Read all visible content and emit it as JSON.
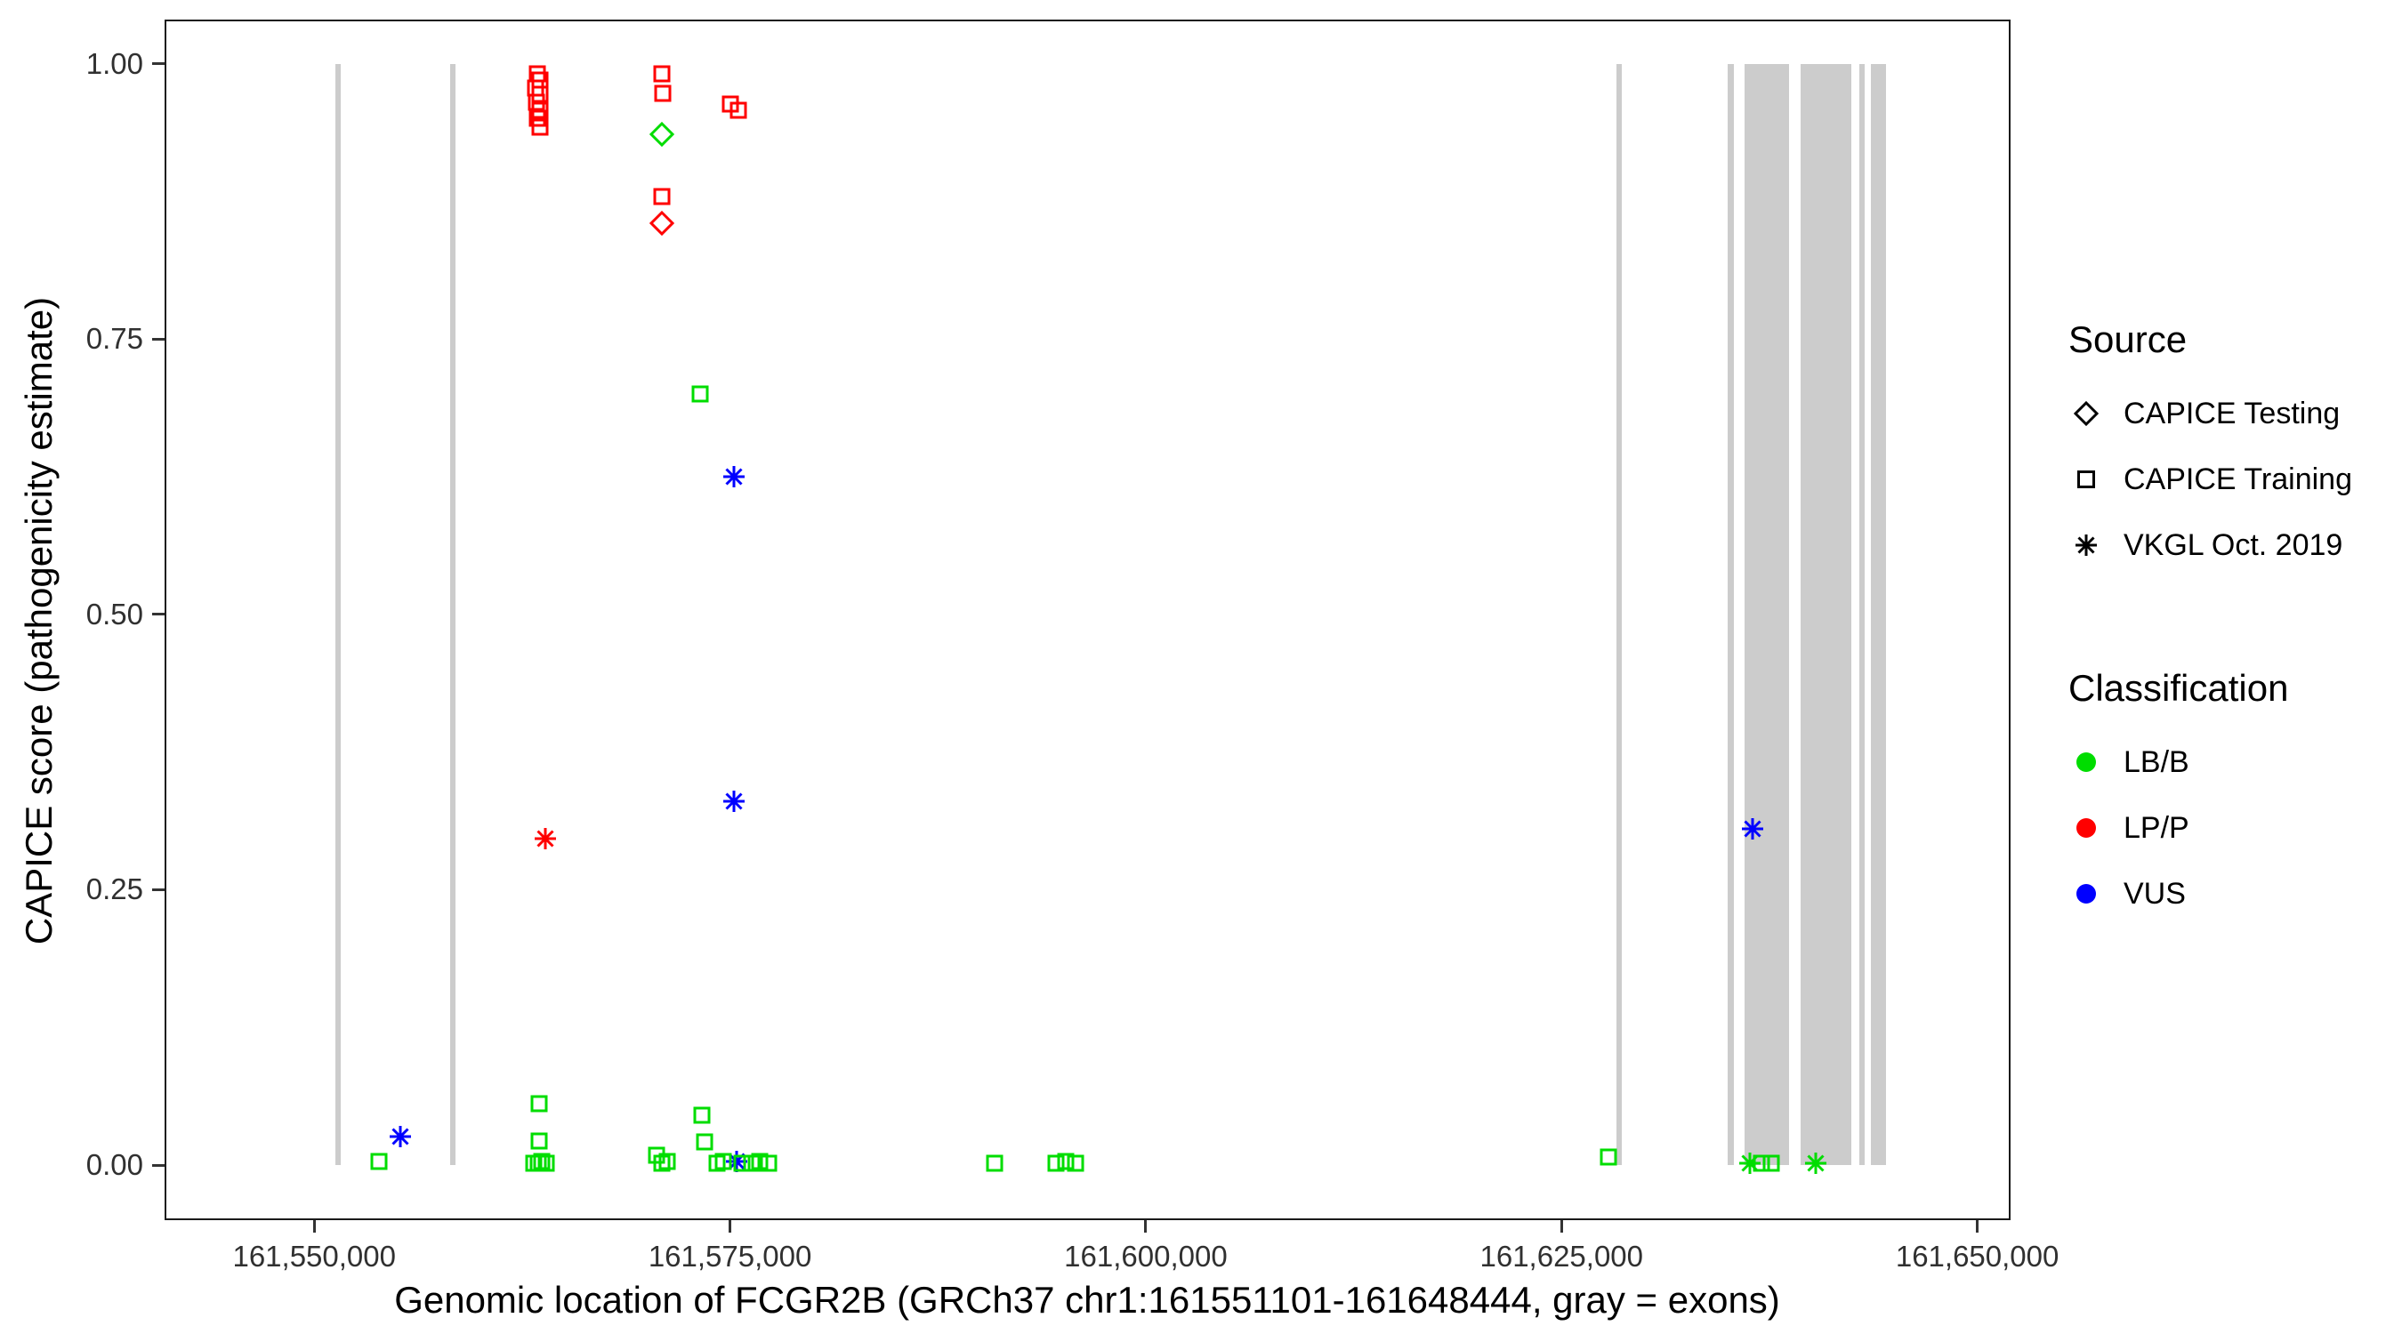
{
  "figure": {
    "x_axis": {
      "title": "Genomic location of FCGR2B (GRCh37 chr1:161551101-161648444, gray = exons)",
      "ticks": [
        {
          "value": 161550000,
          "label": "161,550,000"
        },
        {
          "value": 161575000,
          "label": "161,575,000"
        },
        {
          "value": 161600000,
          "label": "161,600,000"
        },
        {
          "value": 161625000,
          "label": "161,625,000"
        },
        {
          "value": 161650000,
          "label": "161,650,000"
        }
      ]
    },
    "y_axis": {
      "title": "CAPICE score (pathogenicity estimate)",
      "ticks": [
        {
          "value": 0.0,
          "label": "0.00"
        },
        {
          "value": 0.25,
          "label": "0.25"
        },
        {
          "value": 0.5,
          "label": "0.50"
        },
        {
          "value": 0.75,
          "label": "0.75"
        },
        {
          "value": 1.0,
          "label": "1.00"
        }
      ]
    },
    "legend": {
      "source": {
        "title": "Source",
        "items": [
          {
            "label": "CAPICE Testing",
            "symbol": "diamond"
          },
          {
            "label": "CAPICE Training",
            "symbol": "square"
          },
          {
            "label": "VKGL Oct. 2019",
            "symbol": "asterisk"
          }
        ]
      },
      "classification": {
        "title": "Classification",
        "items": [
          {
            "label": "LB/B",
            "color": "#00DD00"
          },
          {
            "label": "LP/P",
            "color": "#FF0000"
          },
          {
            "label": "VUS",
            "color": "#0000FF"
          }
        ]
      }
    },
    "colors": {
      "exon": "#CCCCCC",
      "axis_text": "#303030",
      "border": "#1A1A1A"
    }
  },
  "chart_data": {
    "type": "scatter",
    "title": "",
    "xlabel": "Genomic location of FCGR2B (GRCh37 chr1:161551101-161648444, gray = exons)",
    "ylabel": "CAPICE score (pathogenicity estimate)",
    "xlim": [
      161541000,
      161652000
    ],
    "ylim": [
      -0.05,
      1.04
    ],
    "grid": "off",
    "legend_position": "right",
    "exons": [
      [
        161551250,
        161551600
      ],
      [
        161558150,
        161558500
      ],
      [
        161628300,
        161628650
      ],
      [
        161635000,
        161635350
      ],
      [
        161636000,
        161638700
      ],
      [
        161639400,
        161642400
      ],
      [
        161642900,
        161643250
      ],
      [
        161643600,
        161644500
      ]
    ],
    "points": [
      {
        "x": 161563400,
        "y": 0.991,
        "source": "CAPICE Training",
        "classification": "LP/P"
      },
      {
        "x": 161563600,
        "y": 0.985,
        "source": "CAPICE Training",
        "classification": "LP/P"
      },
      {
        "x": 161563300,
        "y": 0.978,
        "source": "CAPICE Training",
        "classification": "LP/P"
      },
      {
        "x": 161563550,
        "y": 0.972,
        "source": "CAPICE Training",
        "classification": "LP/P"
      },
      {
        "x": 161563350,
        "y": 0.965,
        "source": "CAPICE Training",
        "classification": "LP/P"
      },
      {
        "x": 161563600,
        "y": 0.958,
        "source": "CAPICE Training",
        "classification": "LP/P"
      },
      {
        "x": 161563400,
        "y": 0.95,
        "source": "CAPICE Training",
        "classification": "LP/P"
      },
      {
        "x": 161563550,
        "y": 0.942,
        "source": "CAPICE Training",
        "classification": "LP/P"
      },
      {
        "x": 161570900,
        "y": 0.991,
        "source": "CAPICE Training",
        "classification": "LP/P"
      },
      {
        "x": 161570950,
        "y": 0.973,
        "source": "CAPICE Training",
        "classification": "LP/P"
      },
      {
        "x": 161570900,
        "y": 0.879,
        "source": "CAPICE Training",
        "classification": "LP/P"
      },
      {
        "x": 161575000,
        "y": 0.963,
        "source": "CAPICE Training",
        "classification": "LP/P"
      },
      {
        "x": 161575500,
        "y": 0.958,
        "source": "CAPICE Training",
        "classification": "LP/P"
      },
      {
        "x": 161570900,
        "y": 0.936,
        "source": "CAPICE Testing",
        "classification": "LB/B"
      },
      {
        "x": 161570900,
        "y": 0.855,
        "source": "CAPICE Testing",
        "classification": "LP/P"
      },
      {
        "x": 161563900,
        "y": 0.296,
        "source": "VKGL Oct. 2019",
        "classification": "LP/P"
      },
      {
        "x": 161575250,
        "y": 0.625,
        "source": "VKGL Oct. 2019",
        "classification": "VUS"
      },
      {
        "x": 161575250,
        "y": 0.33,
        "source": "VKGL Oct. 2019",
        "classification": "VUS"
      },
      {
        "x": 161555200,
        "y": 0.026,
        "source": "VKGL Oct. 2019",
        "classification": "VUS"
      },
      {
        "x": 161575400,
        "y": 0.003,
        "source": "VKGL Oct. 2019",
        "classification": "VUS"
      },
      {
        "x": 161636500,
        "y": 0.305,
        "source": "VKGL Oct. 2019",
        "classification": "VUS"
      },
      {
        "x": 161636300,
        "y": 0.002,
        "source": "VKGL Oct. 2019",
        "classification": "LB/B"
      },
      {
        "x": 161640300,
        "y": 0.002,
        "source": "VKGL Oct. 2019",
        "classification": "LB/B"
      },
      {
        "x": 161553900,
        "y": 0.003,
        "source": "CAPICE Training",
        "classification": "LB/B"
      },
      {
        "x": 161563500,
        "y": 0.056,
        "source": "CAPICE Training",
        "classification": "LB/B"
      },
      {
        "x": 161563500,
        "y": 0.022,
        "source": "CAPICE Training",
        "classification": "LB/B"
      },
      {
        "x": 161563200,
        "y": 0.002,
        "source": "CAPICE Training",
        "classification": "LB/B"
      },
      {
        "x": 161563450,
        "y": 0.002,
        "source": "CAPICE Training",
        "classification": "LB/B"
      },
      {
        "x": 161563700,
        "y": 0.003,
        "source": "CAPICE Training",
        "classification": "LB/B"
      },
      {
        "x": 161563950,
        "y": 0.002,
        "source": "CAPICE Training",
        "classification": "LB/B"
      },
      {
        "x": 161570600,
        "y": 0.009,
        "source": "CAPICE Training",
        "classification": "LB/B"
      },
      {
        "x": 161570900,
        "y": 0.002,
        "source": "CAPICE Training",
        "classification": "LB/B"
      },
      {
        "x": 161571250,
        "y": 0.003,
        "source": "CAPICE Training",
        "classification": "LB/B"
      },
      {
        "x": 161573200,
        "y": 0.7,
        "source": "CAPICE Training",
        "classification": "LB/B"
      },
      {
        "x": 161573300,
        "y": 0.045,
        "source": "CAPICE Training",
        "classification": "LB/B"
      },
      {
        "x": 161573450,
        "y": 0.021,
        "source": "CAPICE Training",
        "classification": "LB/B"
      },
      {
        "x": 161574200,
        "y": 0.002,
        "source": "CAPICE Training",
        "classification": "LB/B"
      },
      {
        "x": 161574600,
        "y": 0.003,
        "source": "CAPICE Training",
        "classification": "LB/B"
      },
      {
        "x": 161575700,
        "y": 0.002,
        "source": "CAPICE Training",
        "classification": "LB/B"
      },
      {
        "x": 161576300,
        "y": 0.002,
        "source": "CAPICE Training",
        "classification": "LB/B"
      },
      {
        "x": 161576800,
        "y": 0.003,
        "source": "CAPICE Training",
        "classification": "LB/B"
      },
      {
        "x": 161577300,
        "y": 0.002,
        "source": "CAPICE Training",
        "classification": "LB/B"
      },
      {
        "x": 161590900,
        "y": 0.002,
        "source": "CAPICE Training",
        "classification": "LB/B"
      },
      {
        "x": 161594600,
        "y": 0.002,
        "source": "CAPICE Training",
        "classification": "LB/B"
      },
      {
        "x": 161595200,
        "y": 0.003,
        "source": "CAPICE Training",
        "classification": "LB/B"
      },
      {
        "x": 161595800,
        "y": 0.002,
        "source": "CAPICE Training",
        "classification": "LB/B"
      },
      {
        "x": 161627800,
        "y": 0.007,
        "source": "CAPICE Training",
        "classification": "LB/B"
      },
      {
        "x": 161637000,
        "y": 0.002,
        "source": "CAPICE Training",
        "classification": "LB/B"
      },
      {
        "x": 161637600,
        "y": 0.002,
        "source": "CAPICE Training",
        "classification": "LB/B"
      }
    ]
  }
}
